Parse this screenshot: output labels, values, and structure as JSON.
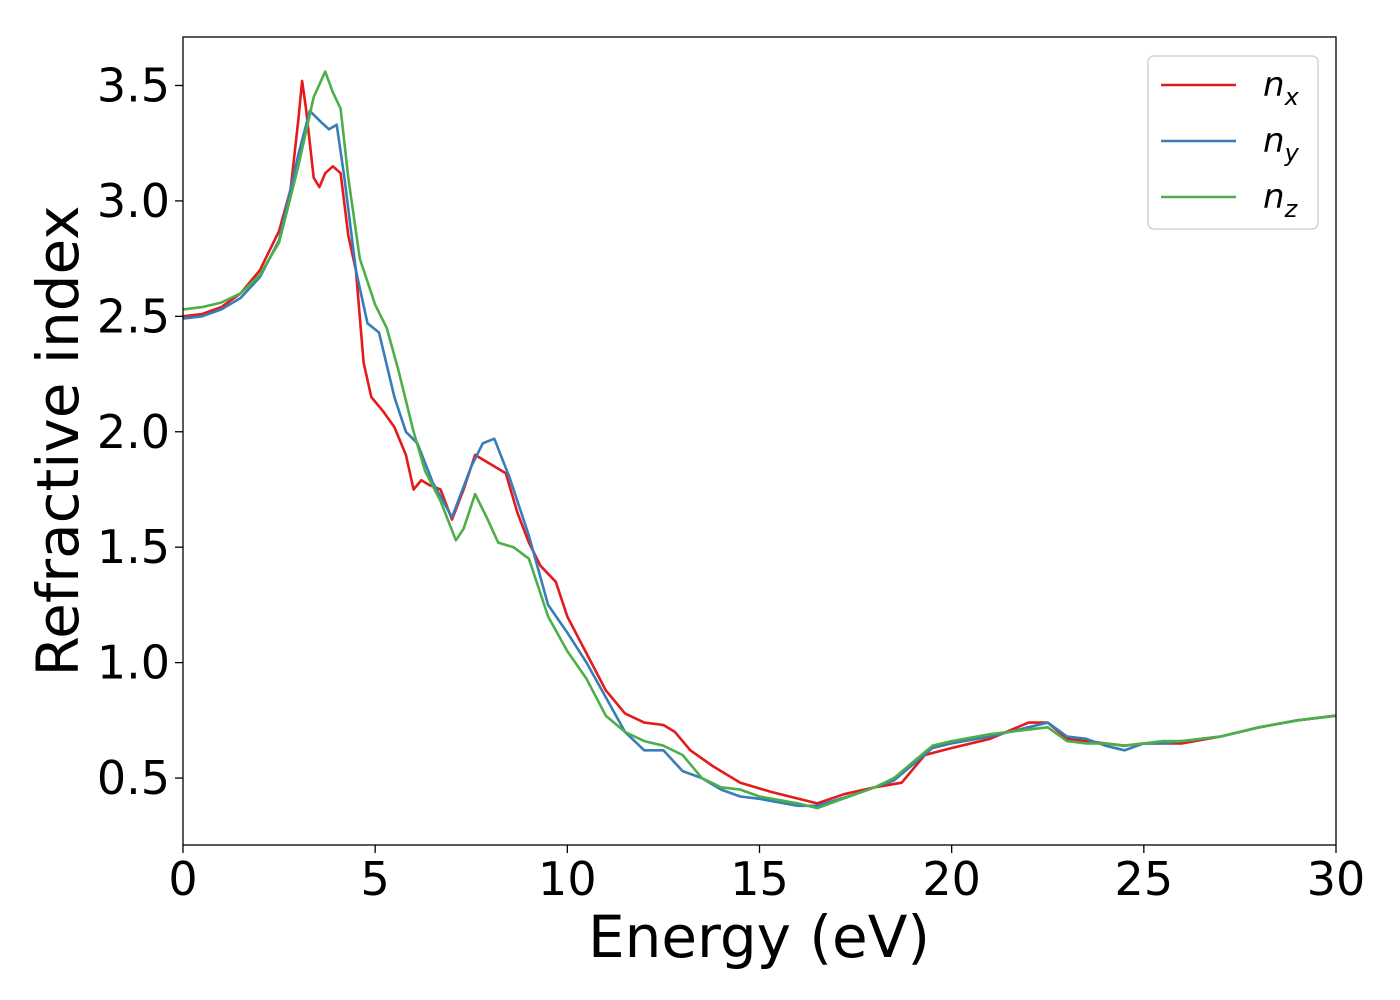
{
  "chart_data": {
    "type": "line",
    "title": "",
    "xlabel": "Energy (eV)",
    "ylabel": "Refractive index",
    "xlim": [
      0,
      30
    ],
    "ylim": [
      0.21,
      3.71
    ],
    "xticks": [
      0,
      5,
      10,
      15,
      20,
      25,
      30
    ],
    "yticks": [
      0.5,
      1.0,
      1.5,
      2.0,
      2.5,
      3.0,
      3.5
    ],
    "xtick_labels": [
      "0",
      "5",
      "10",
      "15",
      "20",
      "25",
      "30"
    ],
    "ytick_labels": [
      "0.5",
      "1.0",
      "1.5",
      "2.0",
      "2.5",
      "3.0",
      "3.5"
    ],
    "grid": false,
    "legend_position": "top-right",
    "series": [
      {
        "name": "n_x",
        "label_base": "n",
        "label_sub": "x",
        "color": "#e41a1c",
        "points": [
          [
            0,
            2.5
          ],
          [
            0.5,
            2.51
          ],
          [
            1,
            2.54
          ],
          [
            1.5,
            2.6
          ],
          [
            2,
            2.7
          ],
          [
            2.5,
            2.87
          ],
          [
            2.8,
            3.05
          ],
          [
            3,
            3.35
          ],
          [
            3.1,
            3.52
          ],
          [
            3.2,
            3.4
          ],
          [
            3.4,
            3.1
          ],
          [
            3.55,
            3.06
          ],
          [
            3.7,
            3.12
          ],
          [
            3.9,
            3.15
          ],
          [
            4.1,
            3.12
          ],
          [
            4.3,
            2.85
          ],
          [
            4.5,
            2.7
          ],
          [
            4.7,
            2.3
          ],
          [
            4.9,
            2.15
          ],
          [
            5.2,
            2.09
          ],
          [
            5.5,
            2.02
          ],
          [
            5.8,
            1.9
          ],
          [
            6,
            1.75
          ],
          [
            6.2,
            1.79
          ],
          [
            6.4,
            1.77
          ],
          [
            6.7,
            1.75
          ],
          [
            7,
            1.62
          ],
          [
            7.3,
            1.75
          ],
          [
            7.6,
            1.9
          ],
          [
            8,
            1.86
          ],
          [
            8.4,
            1.82
          ],
          [
            8.7,
            1.65
          ],
          [
            9,
            1.52
          ],
          [
            9.3,
            1.42
          ],
          [
            9.7,
            1.35
          ],
          [
            10,
            1.2
          ],
          [
            10.5,
            1.04
          ],
          [
            11,
            0.88
          ],
          [
            11.5,
            0.78
          ],
          [
            12,
            0.74
          ],
          [
            12.5,
            0.73
          ],
          [
            12.8,
            0.7
          ],
          [
            13.2,
            0.62
          ],
          [
            13.8,
            0.55
          ],
          [
            14.5,
            0.48
          ],
          [
            15.3,
            0.44
          ],
          [
            16.5,
            0.39
          ],
          [
            17.2,
            0.43
          ],
          [
            18,
            0.46
          ],
          [
            18.7,
            0.48
          ],
          [
            19.3,
            0.6
          ],
          [
            20,
            0.63
          ],
          [
            21,
            0.67
          ],
          [
            22,
            0.74
          ],
          [
            22.5,
            0.74
          ],
          [
            23,
            0.67
          ],
          [
            23.5,
            0.66
          ],
          [
            24,
            0.65
          ],
          [
            24.5,
            0.64
          ],
          [
            25,
            0.65
          ],
          [
            25.5,
            0.65
          ],
          [
            26,
            0.65
          ],
          [
            27,
            0.68
          ],
          [
            28,
            0.72
          ],
          [
            29,
            0.75
          ],
          [
            30,
            0.77
          ]
        ]
      },
      {
        "name": "n_y",
        "label_base": "n",
        "label_sub": "y",
        "color": "#377eb8",
        "points": [
          [
            0,
            2.49
          ],
          [
            0.5,
            2.5
          ],
          [
            1,
            2.53
          ],
          [
            1.5,
            2.58
          ],
          [
            2,
            2.67
          ],
          [
            2.5,
            2.83
          ],
          [
            3,
            3.2
          ],
          [
            3.3,
            3.39
          ],
          [
            3.6,
            3.34
          ],
          [
            3.8,
            3.31
          ],
          [
            4,
            3.33
          ],
          [
            4.2,
            3.1
          ],
          [
            4.5,
            2.7
          ],
          [
            4.8,
            2.47
          ],
          [
            5.1,
            2.43
          ],
          [
            5.5,
            2.15
          ],
          [
            5.8,
            2
          ],
          [
            6.1,
            1.95
          ],
          [
            6.5,
            1.78
          ],
          [
            7,
            1.63
          ],
          [
            7.5,
            1.85
          ],
          [
            7.8,
            1.95
          ],
          [
            8.1,
            1.97
          ],
          [
            8.5,
            1.8
          ],
          [
            9,
            1.55
          ],
          [
            9.5,
            1.25
          ],
          [
            10,
            1.13
          ],
          [
            10.5,
            1.0
          ],
          [
            11,
            0.85
          ],
          [
            11.5,
            0.7
          ],
          [
            12,
            0.62
          ],
          [
            12.5,
            0.62
          ],
          [
            13,
            0.53
          ],
          [
            13.5,
            0.5
          ],
          [
            14,
            0.45
          ],
          [
            14.5,
            0.42
          ],
          [
            15,
            0.41
          ],
          [
            16,
            0.38
          ],
          [
            16.5,
            0.38
          ],
          [
            17.5,
            0.43
          ],
          [
            18.5,
            0.49
          ],
          [
            19,
            0.56
          ],
          [
            19.5,
            0.63
          ],
          [
            20,
            0.65
          ],
          [
            21,
            0.68
          ],
          [
            22,
            0.72
          ],
          [
            22.5,
            0.74
          ],
          [
            23,
            0.68
          ],
          [
            23.5,
            0.67
          ],
          [
            24,
            0.64
          ],
          [
            24.5,
            0.62
          ],
          [
            25,
            0.65
          ],
          [
            25.5,
            0.65
          ],
          [
            26,
            0.66
          ],
          [
            27,
            0.68
          ],
          [
            28,
            0.72
          ],
          [
            29,
            0.75
          ],
          [
            30,
            0.77
          ]
        ]
      },
      {
        "name": "n_z",
        "label_base": "n",
        "label_sub": "z",
        "color": "#4daf4a",
        "points": [
          [
            0,
            2.53
          ],
          [
            0.5,
            2.54
          ],
          [
            1,
            2.56
          ],
          [
            1.5,
            2.6
          ],
          [
            2,
            2.68
          ],
          [
            2.5,
            2.82
          ],
          [
            3,
            3.15
          ],
          [
            3.4,
            3.45
          ],
          [
            3.7,
            3.56
          ],
          [
            3.9,
            3.47
          ],
          [
            4.1,
            3.4
          ],
          [
            4.3,
            3.1
          ],
          [
            4.6,
            2.75
          ],
          [
            5,
            2.55
          ],
          [
            5.3,
            2.45
          ],
          [
            5.6,
            2.27
          ],
          [
            6,
            2.0
          ],
          [
            6.3,
            1.83
          ],
          [
            6.7,
            1.7
          ],
          [
            7.1,
            1.53
          ],
          [
            7.3,
            1.58
          ],
          [
            7.6,
            1.73
          ],
          [
            7.9,
            1.63
          ],
          [
            8.2,
            1.52
          ],
          [
            8.6,
            1.5
          ],
          [
            9,
            1.45
          ],
          [
            9.5,
            1.2
          ],
          [
            10,
            1.05
          ],
          [
            10.5,
            0.93
          ],
          [
            11,
            0.77
          ],
          [
            11.5,
            0.7
          ],
          [
            12,
            0.66
          ],
          [
            12.5,
            0.64
          ],
          [
            13,
            0.6
          ],
          [
            13.5,
            0.5
          ],
          [
            14,
            0.46
          ],
          [
            14.5,
            0.45
          ],
          [
            15,
            0.42
          ],
          [
            16,
            0.39
          ],
          [
            16.5,
            0.37
          ],
          [
            17,
            0.4
          ],
          [
            17.5,
            0.43
          ],
          [
            18,
            0.46
          ],
          [
            18.5,
            0.5
          ],
          [
            19,
            0.57
          ],
          [
            19.5,
            0.64
          ],
          [
            20,
            0.66
          ],
          [
            21,
            0.69
          ],
          [
            22,
            0.71
          ],
          [
            22.5,
            0.72
          ],
          [
            23,
            0.66
          ],
          [
            23.5,
            0.65
          ],
          [
            24,
            0.65
          ],
          [
            24.5,
            0.64
          ],
          [
            25,
            0.65
          ],
          [
            25.5,
            0.66
          ],
          [
            26,
            0.66
          ],
          [
            27,
            0.68
          ],
          [
            28,
            0.72
          ],
          [
            29,
            0.75
          ],
          [
            30,
            0.77
          ]
        ]
      }
    ]
  }
}
